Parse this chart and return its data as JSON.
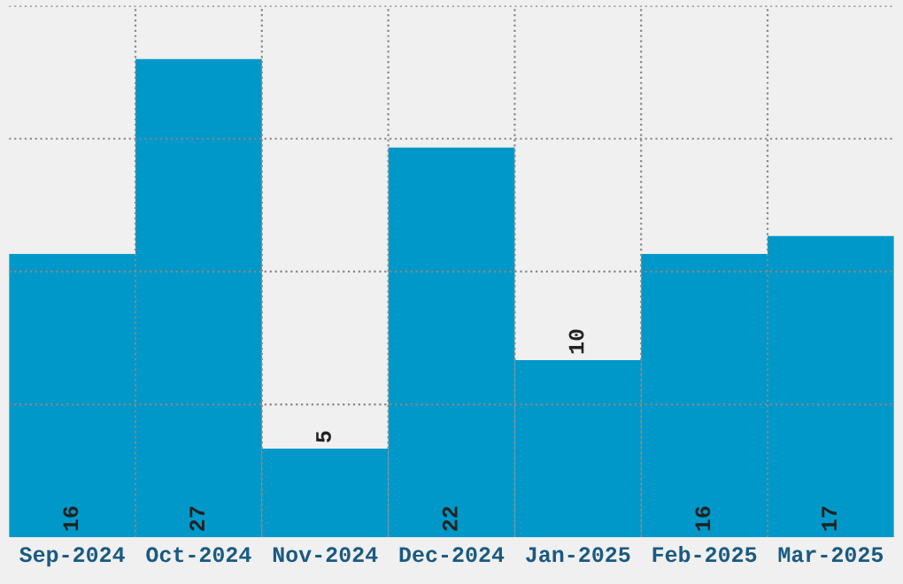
{
  "chart_data": {
    "type": "bar",
    "categories": [
      "Sep-2024",
      "Oct-2024",
      "Nov-2024",
      "Dec-2024",
      "Jan-2025",
      "Feb-2025",
      "Mar-2025"
    ],
    "values": [
      16,
      27,
      5,
      22,
      10,
      16,
      17
    ],
    "color": "#0098c8",
    "data_labels": true,
    "ylim": [
      0,
      30
    ],
    "yticks": [
      {
        "value": 7.5,
        "label": null
      },
      {
        "value": 15,
        "label": null
      },
      {
        "value": 22.5,
        "label": null
      },
      {
        "value": 30,
        "label": null
      }
    ],
    "grid": true
  }
}
